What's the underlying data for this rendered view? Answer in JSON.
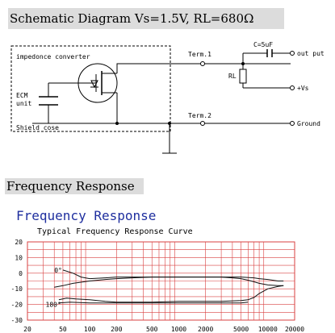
{
  "schematic": {
    "title": "Schematic Diagram  Vs=1.5V, RL=680Ω",
    "labels": {
      "impedance": "impedonce converter",
      "ecm1": "ECM",
      "ecm2": "unit",
      "shield": "Shield cose",
      "term1": "Term.1",
      "term2": "Term.2",
      "capacitor": "C=5uF",
      "resistor": "RL",
      "output": "out put",
      "vs": "+Vs",
      "ground": "Ground"
    }
  },
  "frequency": {
    "section_title": "Frequency Response",
    "chart_title": "Frequency Response",
    "chart_subtitle": "Typical Frequency Response Curve"
  },
  "chart_data": {
    "type": "line",
    "title": "Frequency Response",
    "subtitle": "Typical Frequency Response Curve",
    "x_scale": "log",
    "xlim": [
      20,
      20000
    ],
    "ylim": [
      -30,
      20
    ],
    "x_ticks": [
      20,
      50,
      100,
      200,
      500,
      1000,
      2000,
      5000,
      10000,
      20000
    ],
    "y_ticks": [
      20,
      10,
      0,
      -10,
      -20,
      -30
    ],
    "grid": true,
    "annotations": [
      {
        "text": "0°",
        "x": 40,
        "y": 2
      },
      {
        "text": "180°",
        "x": 32,
        "y": -20
      }
    ],
    "series": [
      {
        "values_x": [
          40,
          50,
          65,
          100,
          150,
          200,
          300,
          500,
          1000,
          2000,
          3000,
          5000,
          7000,
          8000,
          10000,
          13000,
          15000
        ],
        "values_y": [
          -9,
          -8,
          -6.5,
          -5,
          -4,
          -3.5,
          -3,
          -2.5,
          -2.5,
          -2.5,
          -2.5,
          -2.5,
          -3,
          -3.5,
          -4,
          -5,
          -5
        ]
      },
      {
        "values_x": [
          50,
          65,
          80,
          100,
          150,
          200,
          300,
          500,
          1000,
          2000,
          3000,
          4000,
          5000,
          6000,
          7000,
          8000,
          10000,
          13000,
          15000
        ],
        "values_y": [
          2,
          0,
          -2.5,
          -3.5,
          -3,
          -2.5,
          -2.5,
          -2.5,
          -2.5,
          -2.5,
          -2.5,
          -3,
          -3.5,
          -4.5,
          -5.5,
          -6.5,
          -7.5,
          -8,
          -8
        ]
      },
      {
        "values_x": [
          45,
          55,
          70,
          100,
          150,
          200,
          300,
          500,
          1000,
          2000,
          3000,
          5000,
          6000,
          7000,
          8000,
          10000,
          13000,
          15000
        ],
        "values_y": [
          -17,
          -16,
          -16.5,
          -17,
          -18,
          -18.5,
          -18.5,
          -18.5,
          -18,
          -18,
          -18,
          -17.5,
          -17,
          -15.5,
          -13,
          -10,
          -8.5,
          -8
        ]
      },
      {
        "values_x": [
          45,
          60,
          100,
          200,
          500,
          1000,
          2000,
          4000,
          5000,
          6000
        ],
        "values_y": [
          -19,
          -18.5,
          -19,
          -19,
          -19,
          -19,
          -19,
          -19,
          -19,
          -18.5
        ]
      }
    ]
  }
}
